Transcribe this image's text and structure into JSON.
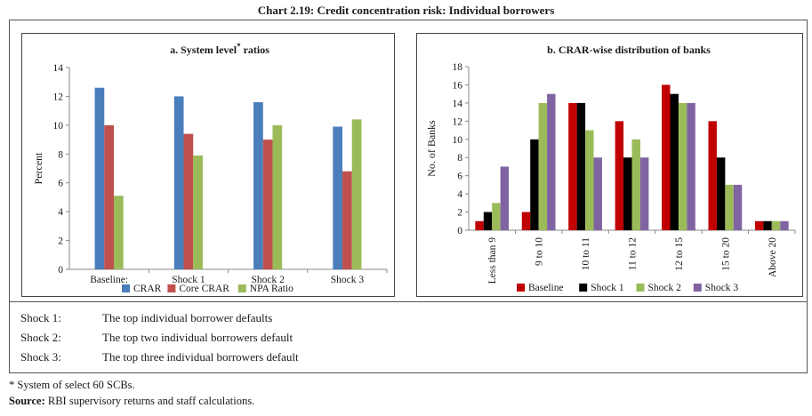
{
  "title": "Chart 2.19: Credit concentration risk: Individual borrowers",
  "notes": [
    {
      "key": "Shock 1:",
      "text": "The top individual borrower defaults"
    },
    {
      "key": "Shock 2:",
      "text": "The top two individual borrowers default"
    },
    {
      "key": "Shock 3:",
      "text": "The top three individual borrowers default"
    }
  ],
  "footnote": "* System of select 60 SCBs.",
  "source_label": "Source:",
  "source_text": "RBI supervisory returns and staff calculations.",
  "chart_data": [
    {
      "type": "bar",
      "title": "a. System level",
      "title_sup": "*",
      "title_suffix": " ratios",
      "ylabel": "Percent",
      "xlabel": "",
      "ylim": [
        0,
        14
      ],
      "yticks": [
        0,
        2,
        4,
        6,
        8,
        10,
        12,
        14
      ],
      "categories": [
        "Baseline:",
        "Shock 1",
        "Shock 2",
        "Shock 3"
      ],
      "series": [
        {
          "name": "CRAR",
          "color": "#4a7ebb",
          "values": [
            12.6,
            12.0,
            11.6,
            9.9
          ]
        },
        {
          "name": "Core CRAR",
          "color": "#c0504d",
          "values": [
            10.0,
            9.4,
            9.0,
            6.8
          ]
        },
        {
          "name": "NPA Ratio",
          "color": "#9bbb59",
          "values": [
            5.1,
            7.9,
            10.0,
            10.4
          ]
        }
      ],
      "legend": "bottom",
      "grid": false
    },
    {
      "type": "bar",
      "title": "b. CRAR-wise distribution of banks",
      "ylabel": "No. of Banks",
      "xlabel": "",
      "ylim": [
        0,
        18
      ],
      "yticks": [
        0,
        2,
        4,
        6,
        8,
        10,
        12,
        14,
        16,
        18
      ],
      "categories": [
        "Less than 9",
        "9 to 10",
        "10 to 11",
        "11 to 12",
        "12 to 15",
        "15 to 20",
        "Above 20"
      ],
      "series": [
        {
          "name": "Baseline",
          "color": "#c00000",
          "values": [
            1,
            2,
            14,
            12,
            16,
            12,
            1
          ]
        },
        {
          "name": "Shock 1",
          "color": "#000000",
          "values": [
            2,
            10,
            14,
            8,
            15,
            8,
            1
          ]
        },
        {
          "name": "Shock 2",
          "color": "#9bbb59",
          "values": [
            3,
            14,
            11,
            10,
            14,
            5,
            1
          ]
        },
        {
          "name": "Shock 3",
          "color": "#8064a2",
          "values": [
            7,
            15,
            8,
            8,
            14,
            5,
            1
          ]
        }
      ],
      "legend": "bottom",
      "grid": false
    }
  ]
}
